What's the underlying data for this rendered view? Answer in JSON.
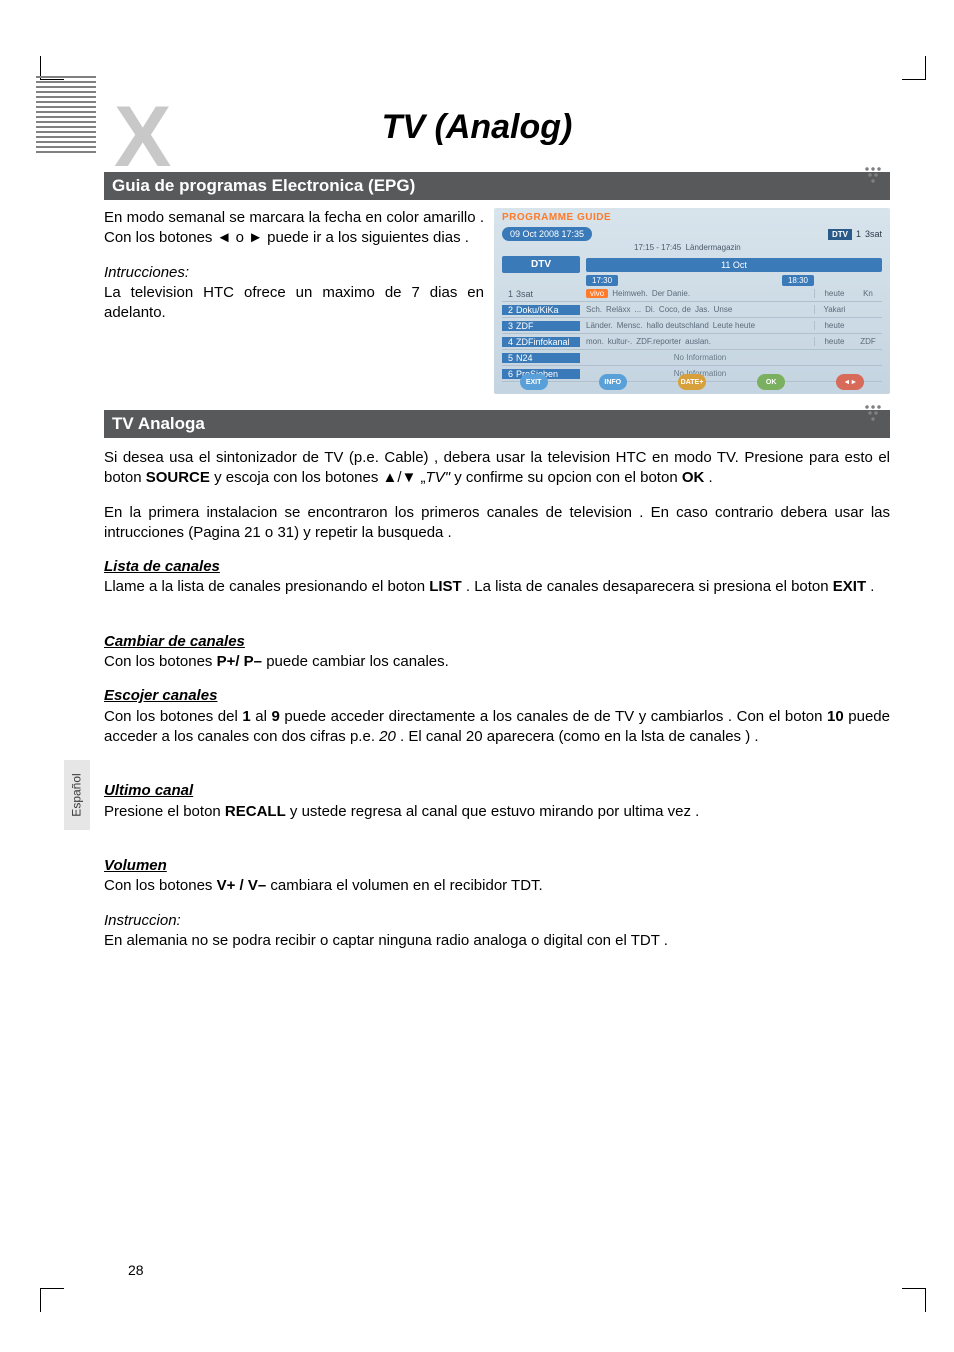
{
  "page_title": "TV (Analog)",
  "language_tab": "Español",
  "page_number": "28",
  "section1": {
    "heading": "Guia de programas Electronica (EPG)",
    "p1": "En modo semanal se marcara la fecha en color amarillo . Con los botones ◄ o ► puede ir a los siguientes dias .",
    "instr_label": "Intrucciones:",
    "instr_body": "La television HTC ofrece un maximo de 7 dias en adelanto."
  },
  "epg": {
    "title": "PROGRAMME GUIDE",
    "date_pill": "09 Oct 2008  17:35",
    "dtv_badge": "DTV",
    "now_channel_num": "1",
    "now_channel_name": "3sat",
    "now_time_range": "17:15 - 17:45",
    "now_prog": "Ländermagazin",
    "dtv_cell": "DTV",
    "day_label": "11 Oct",
    "time1": "17:30",
    "time2": "18:30",
    "channels": [
      {
        "num": "1",
        "name": "3sat",
        "sel": false,
        "progs": [
          "vivo",
          "Heimweh.",
          "Der Danie."
        ],
        "right": "heute",
        "right2": "Kn"
      },
      {
        "num": "2",
        "name": "Doku/KiKa",
        "sel": true,
        "progs": [
          "Sch.",
          "Reläxx",
          "...",
          "Di.",
          "Coco, de",
          "Jas.",
          "Unse"
        ],
        "right": "Yakari",
        "right2": ""
      },
      {
        "num": "3",
        "name": "ZDF",
        "sel": true,
        "progs": [
          "Länder.",
          "Mensc.",
          "hallo deutschland",
          "Leute heute"
        ],
        "right": "heute",
        "right2": ""
      },
      {
        "num": "4",
        "name": "ZDFinfokanal",
        "sel": true,
        "progs": [
          "mon.",
          "kultur-.",
          "ZDF.reporter",
          "auslan."
        ],
        "right": "heute",
        "right2": "ZDF"
      },
      {
        "num": "5",
        "name": "N24",
        "sel": true,
        "noinfo": "No Information"
      },
      {
        "num": "6",
        "name": "ProSieben",
        "sel": true,
        "noinfo": "No Information"
      }
    ],
    "buttons": [
      {
        "label": "EXIT",
        "color": "#5aa0d8"
      },
      {
        "label": "INFO",
        "color": "#5aa0d8"
      },
      {
        "label": "DATE+",
        "color": "#d8a03a"
      },
      {
        "label": "OK",
        "color": "#7ab060"
      },
      {
        "label": "◄►",
        "color": "#d86a5a"
      }
    ]
  },
  "section2": {
    "heading": "TV Analoga",
    "p1_a": "Si desea usa el sintonizador de TV (p.e. Cable) , debera usar la television HTC en modo TV. Presione para esto el boton ",
    "p1_source": "SOURCE",
    "p1_b": " y escoja con los botones ▲/▼  „",
    "p1_tv": "TV\"",
    "p1_c": " y confirme su opcion con el boton ",
    "p1_ok": "OK",
    "p1_d": " .",
    "p2": "En la primera instalacion se encontraron los primeros canales de television . En caso contrario debera usar las intrucciones (Pagina 21 o 31) y repetir la busqueda .",
    "lista_h": "Lista de canales",
    "lista_a": "Llame a la lista de canales presionando el boton ",
    "lista_list": "LIST",
    "lista_b": " . La lista de canales desaparecera si presiona el boton ",
    "lista_exit": "EXIT",
    "lista_c": " .",
    "cambiar_h": "Cambiar de canales",
    "cambiar_a": "Con los botones ",
    "cambiar_pp": "P+/ P–",
    "cambiar_b": " puede cambiar los canales.",
    "escojer_h": "Escojer canales",
    "escojer_a": "Con los botones del ",
    "escojer_1": "1",
    "escojer_b": " al ",
    "escojer_9": "9",
    "escojer_c": " puede acceder directamente a los canales de de TV y cambiarlos . Con el boton ",
    "escojer_10": "10",
    "escojer_d": " puede acceder a los canales con dos cifras p.e. ",
    "escojer_20": "20",
    "escojer_e": " . El canal 20 aparecera (como en la lsta de canales ) .",
    "ultimo_h": "Ultimo canal",
    "ultimo_a": "Presione el boton ",
    "ultimo_recall": "RECALL",
    "ultimo_b": " y ustede regresa al canal que estuvo mirando por ultima vez .",
    "volumen_h": "Volumen",
    "volumen_a": "Con los botones ",
    "volumen_v": "V+ / V–",
    "volumen_b": " cambiara el volumen en el recibidor TDT.",
    "instr2_label": "Instruccion:",
    "instr2_body": "En alemania no se podra recibir o captar ninguna radio analoga o digital con el TDT ."
  }
}
